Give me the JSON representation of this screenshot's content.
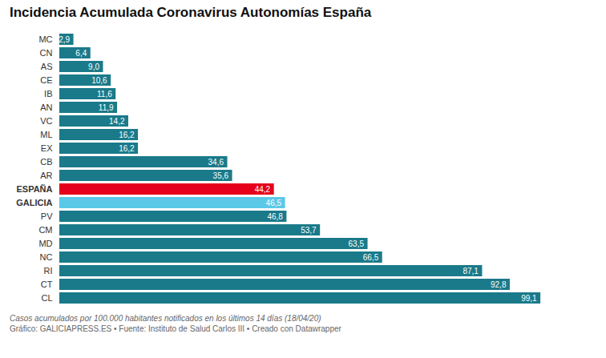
{
  "chart_data": {
    "type": "bar",
    "orientation": "horizontal",
    "title": "Incidencia Acumulada Coronavirus Autonomías España",
    "categories": [
      "MC",
      "CN",
      "AS",
      "CE",
      "IB",
      "AN",
      "VC",
      "ML",
      "EX",
      "CB",
      "AR",
      "ESPAÑA",
      "GALICIA",
      "PV",
      "CM",
      "MD",
      "NC",
      "RI",
      "CT",
      "CL"
    ],
    "values": [
      2.9,
      6.4,
      9.0,
      10.6,
      11.6,
      11.9,
      14.2,
      16.2,
      16.2,
      34.6,
      35.6,
      44.2,
      46.5,
      46.8,
      53.7,
      63.5,
      66.5,
      87.1,
      92.8,
      99.1
    ],
    "value_labels": [
      "2,9",
      "6,4",
      "9,0",
      "10,6",
      "11,6",
      "11,9",
      "14,2",
      "16,2",
      "16,2",
      "34,6",
      "35,6",
      "44,2",
      "46,5",
      "46,8",
      "53,7",
      "63,5",
      "66,5",
      "87,1",
      "92,8",
      "99,1"
    ],
    "colors": [
      "#1a7a8a",
      "#1a7a8a",
      "#1a7a8a",
      "#1a7a8a",
      "#1a7a8a",
      "#1a7a8a",
      "#1a7a8a",
      "#1a7a8a",
      "#1a7a8a",
      "#1a7a8a",
      "#1a7a8a",
      "#e5001c",
      "#5bc8e8",
      "#1a7a8a",
      "#1a7a8a",
      "#1a7a8a",
      "#1a7a8a",
      "#1a7a8a",
      "#1a7a8a",
      "#1a7a8a"
    ],
    "xlim": [
      0,
      108
    ],
    "data_labels": true,
    "tick_labels": "y",
    "grid": false,
    "caption": [
      "Casos acumulados por 100.000 habitantes notificados en los últimos 14 días (18/04/20)",
      "Gráfico: GALICIAPRESS.ES • Fuente: Instituto de Salud Carlos III • Creado con Datawrapper"
    ]
  }
}
